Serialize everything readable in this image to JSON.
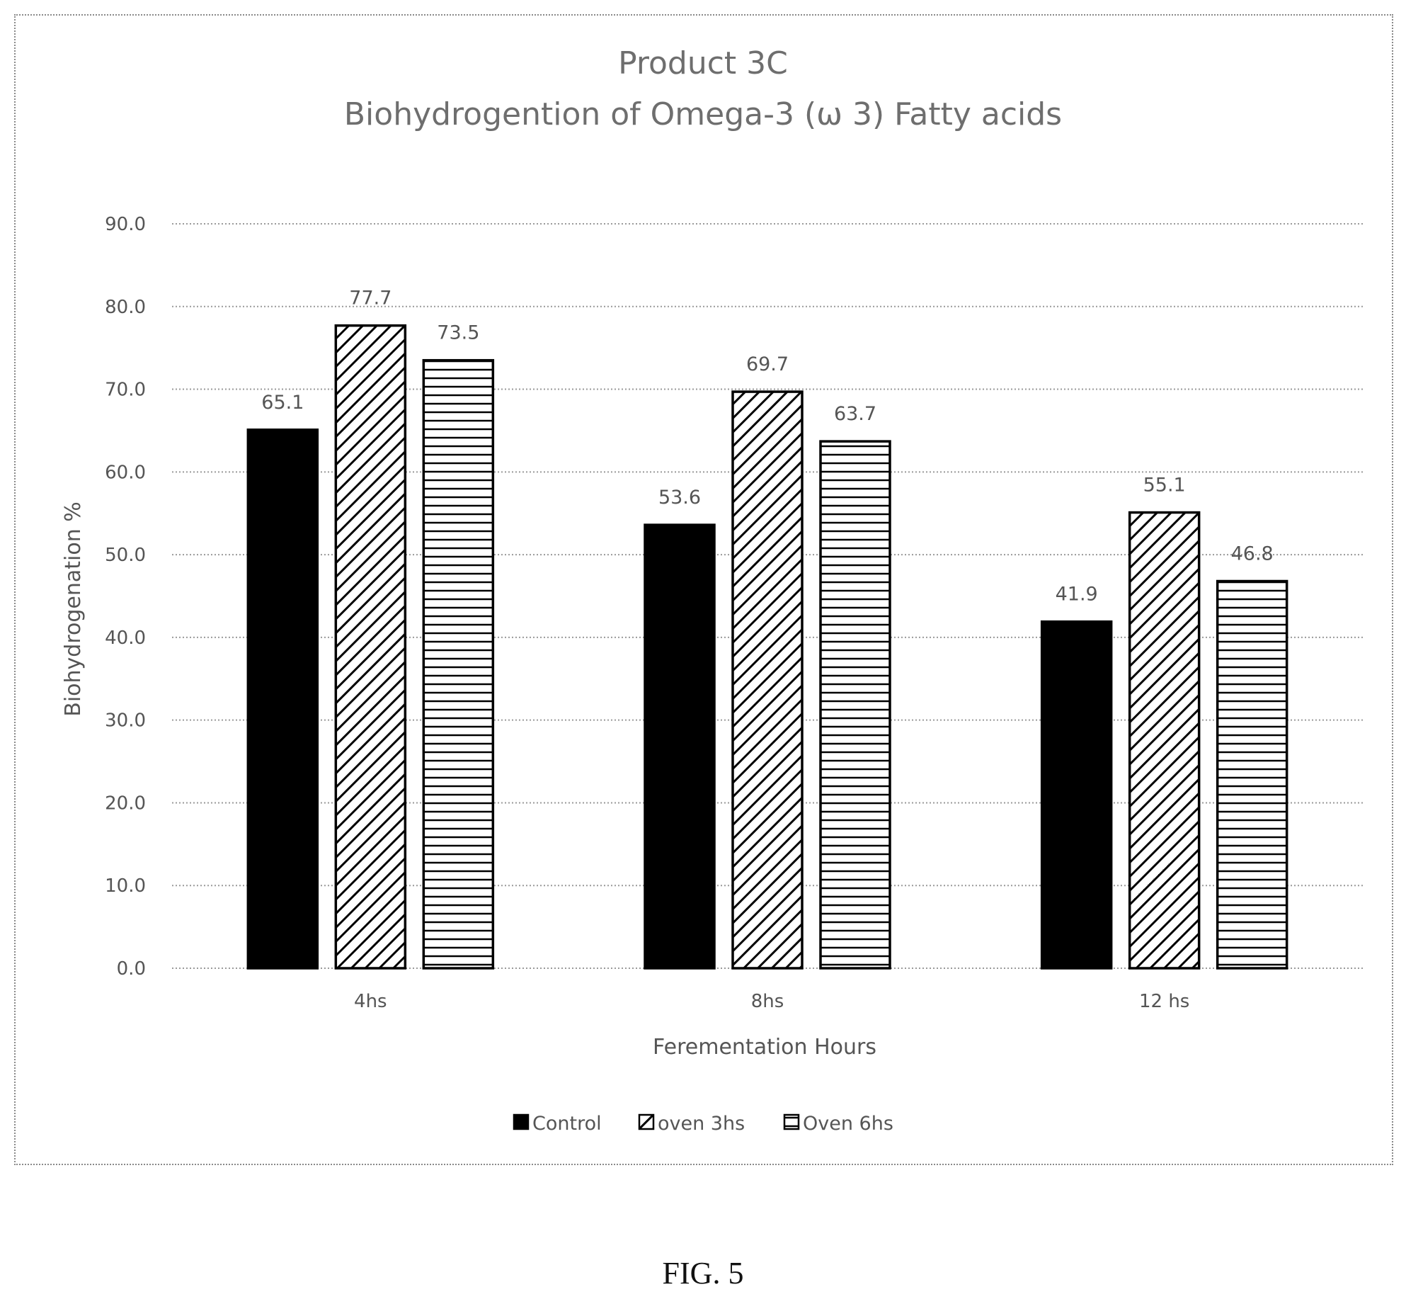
{
  "chart_data": {
    "type": "bar",
    "title": "Product 3C",
    "subtitle": "Biohydrogention of Omega-3 (ω 3)  Fatty acids",
    "xlabel": "Ferementation Hours",
    "ylabel": "Biohydrogenation %",
    "categories": [
      "4hs",
      "8hs",
      "12 hs"
    ],
    "series": [
      {
        "name": "Control",
        "values": [
          65.1,
          53.6,
          41.9
        ],
        "pattern": "solid",
        "color": "#000000"
      },
      {
        "name": "oven 3hs",
        "values": [
          77.7,
          69.7,
          55.1
        ],
        "pattern": "diagonal-hatch",
        "color": "#000000"
      },
      {
        "name": "Oven 6hs",
        "values": [
          73.5,
          63.7,
          46.8
        ],
        "pattern": "horizontal-hatch",
        "color": "#000000"
      }
    ],
    "ylim": [
      0,
      90
    ],
    "yticks": [
      "0.0",
      "10.0",
      "20.0",
      "30.0",
      "40.0",
      "50.0",
      "60.0",
      "70.0",
      "80.0",
      "90.0"
    ],
    "grid": true,
    "legend_position": "bottom"
  },
  "figure_caption": "FIG. 5"
}
